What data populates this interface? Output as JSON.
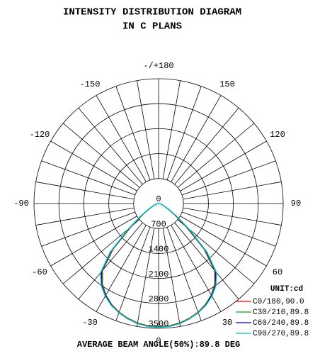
{
  "chart_data": {
    "type": "polar-line",
    "title": "INTENSITY DISTRIBUTION DIAGRAM",
    "subtitle": "IN C PLANS",
    "annotation": "AVERAGE BEAM ANGLE(50%):89.8 DEG",
    "legend_title": "UNIT:cd",
    "legend_position": "lower right",
    "rlim": [
      0,
      3500
    ],
    "rticks": [
      0,
      700,
      1400,
      2100,
      2800,
      3500
    ],
    "thetaticks": [
      {
        "value": 180,
        "label": "-/+180"
      },
      150,
      120,
      90,
      60,
      30,
      0,
      -30,
      -60,
      -90,
      -120,
      -150
    ],
    "grid": true,
    "x": [
      -90,
      -85,
      -80,
      -75,
      -70,
      -65,
      -60,
      -55,
      -50,
      -45,
      -40,
      -35,
      -30,
      -25,
      -20,
      -15,
      -10,
      -5,
      0,
      5,
      10,
      15,
      20,
      25,
      30,
      35,
      40,
      45,
      50,
      55,
      60,
      65,
      70,
      75,
      80,
      85,
      90
    ],
    "series": [
      {
        "name": "C0/180,90.0",
        "color": "#e00000",
        "values": [
          0,
          20,
          40,
          70,
          110,
          180,
          300,
          550,
          1000,
          1800,
          2450,
          2750,
          2960,
          3120,
          3240,
          3330,
          3400,
          3440,
          3450,
          3440,
          3400,
          3330,
          3240,
          3120,
          2960,
          2750,
          2450,
          1800,
          1000,
          550,
          300,
          180,
          110,
          70,
          40,
          20,
          0
        ]
      },
      {
        "name": "C30/210,89.8",
        "color": "#00b000",
        "values": [
          0,
          20,
          40,
          70,
          110,
          180,
          310,
          570,
          1040,
          1840,
          2480,
          2770,
          2970,
          3130,
          3250,
          3340,
          3410,
          3450,
          3460,
          3450,
          3410,
          3340,
          3250,
          3130,
          2970,
          2770,
          2480,
          1840,
          1040,
          570,
          310,
          180,
          110,
          70,
          40,
          20,
          0
        ]
      },
      {
        "name": "C60/240,89.8",
        "color": "#0000b0",
        "values": [
          0,
          20,
          40,
          70,
          120,
          190,
          320,
          600,
          1080,
          1880,
          2500,
          2790,
          2980,
          3140,
          3260,
          3350,
          3420,
          3460,
          3470,
          3460,
          3420,
          3350,
          3260,
          3140,
          2980,
          2790,
          2500,
          1880,
          1080,
          600,
          320,
          190,
          120,
          70,
          40,
          20,
          0
        ]
      },
      {
        "name": "C90/270,89.8",
        "color": "#00c8c8",
        "values": [
          0,
          20,
          40,
          80,
          120,
          200,
          340,
          630,
          1120,
          1920,
          2540,
          2810,
          3000,
          3150,
          3260,
          3350,
          3420,
          3460,
          3470,
          3460,
          3420,
          3350,
          3260,
          3150,
          3000,
          2810,
          2540,
          1920,
          1120,
          630,
          340,
          200,
          120,
          80,
          40,
          20,
          0
        ]
      }
    ]
  }
}
